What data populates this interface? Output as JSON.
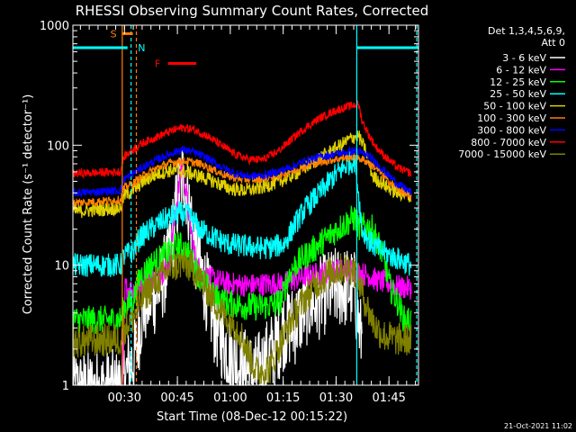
{
  "chart_data": {
    "type": "line",
    "title": "RHESSI Observing Summary Count Rates, Corrected",
    "xlabel": "Start Time (08-Dec-12 00:15:22)",
    "ylabel": "Corrected Count Rate (s⁻¹ detector⁻¹)",
    "y_scale": "log",
    "ylim": [
      1,
      1000
    ],
    "y_ticks": [
      1,
      10,
      100,
      1000
    ],
    "y_tick_labels": [
      "1",
      "10",
      "100",
      "1000"
    ],
    "x_unit": "minutes since 00:15:22",
    "xlim": [
      0,
      98
    ],
    "x_ticks": [
      14.63,
      29.63,
      44.63,
      59.63,
      74.63,
      89.63
    ],
    "x_tick_labels": [
      "00:30",
      "00:45",
      "01:00",
      "01:15",
      "01:30",
      "01:45"
    ],
    "grid": false,
    "legend_placement": "right",
    "legend_header": [
      "Det 1,3,4,5,6,9,",
      "Att 0"
    ],
    "footer": "21-Oct-2021 11:02",
    "vertical_markers": [
      {
        "x": 14.0,
        "color": "#ff8000",
        "style": "solid"
      },
      {
        "x": 16.5,
        "color": "#00ffff",
        "style": "dashed"
      },
      {
        "x": 18.0,
        "color": "#ff8000",
        "style": "dashed"
      },
      {
        "x": 80.5,
        "color": "#00ffff",
        "style": "solid"
      },
      {
        "x": 97.5,
        "color": "#00ffff",
        "style": "dashed"
      }
    ],
    "flag_bars": [
      {
        "label": "N",
        "color": "#00ffff",
        "segments": [
          [
            0,
            15.5
          ],
          [
            80.5,
            98
          ]
        ],
        "level": 650,
        "label_x": 19.5
      },
      {
        "label": "S",
        "color": "#ff8000",
        "segments": [
          [
            14,
            17
          ]
        ],
        "level": 850,
        "label_x": 11.5
      },
      {
        "label": "F",
        "color": "#ff0000",
        "segments": [
          [
            27,
            35
          ]
        ],
        "level": 480,
        "label_x": 24
      }
    ],
    "series": [
      {
        "name": "3 - 6 keV",
        "color": "#ffffff",
        "points": [
          [
            0,
            0.9
          ],
          [
            13.5,
            0.9
          ],
          [
            15,
            1.2
          ],
          [
            17,
            1.6
          ],
          [
            18,
            2
          ],
          [
            19.5,
            4
          ],
          [
            21,
            5
          ],
          [
            24,
            6
          ],
          [
            27,
            10
          ],
          [
            30,
            40
          ],
          [
            31.5,
            60
          ],
          [
            33,
            30
          ],
          [
            35,
            12
          ],
          [
            38,
            6
          ],
          [
            40,
            3.3
          ],
          [
            43,
            2.2
          ],
          [
            47,
            1.5
          ],
          [
            52,
            1.2
          ],
          [
            56,
            1.8
          ],
          [
            60,
            3
          ],
          [
            63,
            3.2
          ],
          [
            66,
            4.6
          ],
          [
            69,
            5
          ],
          [
            72,
            6
          ],
          [
            75,
            6.5
          ],
          [
            78,
            6.5
          ],
          [
            80,
            6
          ],
          [
            81.5,
            2.5
          ],
          [
            82,
            2.8
          ]
        ],
        "noise": 0.35
      },
      {
        "name": "6 - 12 keV",
        "color": "#ff00ff",
        "points": [
          [
            13.5,
            0.5
          ],
          [
            14.3,
            1.5
          ],
          [
            14.8,
            6.5
          ],
          [
            17,
            6.2
          ],
          [
            20,
            7
          ],
          [
            24,
            8
          ],
          [
            27,
            10
          ],
          [
            29,
            25
          ],
          [
            31,
            75
          ],
          [
            33,
            25
          ],
          [
            35,
            10
          ],
          [
            38,
            8
          ],
          [
            44,
            7
          ],
          [
            50,
            6.8
          ],
          [
            56,
            7
          ],
          [
            60,
            7
          ],
          [
            65,
            8
          ],
          [
            70,
            8.5
          ],
          [
            75,
            9
          ],
          [
            79,
            9.2
          ],
          [
            82,
            8.5
          ],
          [
            84,
            8.2
          ],
          [
            86,
            7.5
          ],
          [
            90,
            7
          ],
          [
            93,
            6.5
          ],
          [
            96,
            6.5
          ]
        ],
        "noise": 0.1
      },
      {
        "name": "12 - 25 keV",
        "color": "#00ff00",
        "points": [
          [
            0,
            3.5
          ],
          [
            13.5,
            3.5
          ],
          [
            14.5,
            4.5
          ],
          [
            17,
            5
          ],
          [
            19,
            8
          ],
          [
            22,
            10
          ],
          [
            26,
            12
          ],
          [
            30,
            15
          ],
          [
            33,
            12
          ],
          [
            36,
            8
          ],
          [
            40,
            5.5
          ],
          [
            44,
            4.8
          ],
          [
            48,
            4.6
          ],
          [
            52,
            4.5
          ],
          [
            56,
            4.6
          ],
          [
            59,
            5
          ],
          [
            61,
            8
          ],
          [
            63,
            10
          ],
          [
            66,
            12
          ],
          [
            70,
            15
          ],
          [
            74,
            19
          ],
          [
            78,
            23
          ],
          [
            80,
            25
          ],
          [
            81,
            21
          ],
          [
            83,
            21
          ],
          [
            85,
            20
          ],
          [
            88,
            12
          ],
          [
            90,
            6.5
          ],
          [
            92,
            5
          ],
          [
            94,
            3.5
          ],
          [
            96,
            3.5
          ]
        ],
        "noise": 0.12
      },
      {
        "name": "25 - 50 keV",
        "color": "#00ffff",
        "points": [
          [
            0,
            10
          ],
          [
            13.5,
            10
          ],
          [
            14.5,
            12
          ],
          [
            17,
            13
          ],
          [
            19,
            17
          ],
          [
            22,
            20
          ],
          [
            26,
            24
          ],
          [
            30,
            27
          ],
          [
            33,
            26
          ],
          [
            36,
            20
          ],
          [
            40,
            17
          ],
          [
            44,
            15
          ],
          [
            48,
            14.5
          ],
          [
            52,
            14
          ],
          [
            56,
            14
          ],
          [
            60,
            15
          ],
          [
            63,
            22
          ],
          [
            66,
            30
          ],
          [
            70,
            40
          ],
          [
            74,
            55
          ],
          [
            78,
            70
          ],
          [
            80,
            75
          ],
          [
            82,
            20
          ],
          [
            84,
            16
          ],
          [
            86,
            14
          ],
          [
            88,
            13
          ],
          [
            90,
            12
          ],
          [
            93,
            11
          ],
          [
            96,
            10
          ]
        ],
        "noise": 0.1
      },
      {
        "name": "50 - 100 keV",
        "color": "#e0d000",
        "points": [
          [
            0,
            28
          ],
          [
            13.5,
            30
          ],
          [
            14.5,
            38
          ],
          [
            17,
            42
          ],
          [
            20,
            50
          ],
          [
            24,
            58
          ],
          [
            28,
            62
          ],
          [
            32,
            60
          ],
          [
            36,
            55
          ],
          [
            40,
            50
          ],
          [
            44,
            44
          ],
          [
            48,
            42
          ],
          [
            52,
            43
          ],
          [
            56,
            47
          ],
          [
            60,
            52
          ],
          [
            64,
            60
          ],
          [
            68,
            72
          ],
          [
            72,
            85
          ],
          [
            76,
            100
          ],
          [
            79,
            115
          ],
          [
            81,
            120
          ],
          [
            83,
            90
          ],
          [
            85,
            55
          ],
          [
            87,
            50
          ],
          [
            89,
            45
          ],
          [
            92,
            40
          ],
          [
            96,
            38
          ]
        ],
        "noise": 0.06
      },
      {
        "name": "100 - 300 keV",
        "color": "#ff8000",
        "points": [
          [
            0,
            33
          ],
          [
            13.5,
            35
          ],
          [
            14.5,
            44
          ],
          [
            17,
            48
          ],
          [
            20,
            56
          ],
          [
            24,
            65
          ],
          [
            28,
            72
          ],
          [
            32,
            74
          ],
          [
            36,
            70
          ],
          [
            40,
            62
          ],
          [
            44,
            55
          ],
          [
            48,
            52
          ],
          [
            52,
            52
          ],
          [
            56,
            54
          ],
          [
            60,
            58
          ],
          [
            64,
            64
          ],
          [
            68,
            70
          ],
          [
            72,
            74
          ],
          [
            76,
            78
          ],
          [
            80,
            80
          ],
          [
            83,
            74
          ],
          [
            86,
            64
          ],
          [
            89,
            52
          ],
          [
            92,
            44
          ],
          [
            96,
            36
          ]
        ],
        "noise": 0.035
      },
      {
        "name": "300 - 800 keV",
        "color": "#0000ff",
        "points": [
          [
            0,
            40
          ],
          [
            13.5,
            42
          ],
          [
            14.5,
            52
          ],
          [
            17,
            58
          ],
          [
            20,
            66
          ],
          [
            24,
            76
          ],
          [
            28,
            86
          ],
          [
            31,
            92
          ],
          [
            34,
            88
          ],
          [
            38,
            78
          ],
          [
            42,
            66
          ],
          [
            46,
            58
          ],
          [
            50,
            55
          ],
          [
            54,
            56
          ],
          [
            58,
            60
          ],
          [
            62,
            66
          ],
          [
            66,
            74
          ],
          [
            70,
            80
          ],
          [
            74,
            84
          ],
          [
            78,
            88
          ],
          [
            80,
            90
          ],
          [
            83,
            84
          ],
          [
            86,
            72
          ],
          [
            89,
            58
          ],
          [
            92,
            48
          ],
          [
            96,
            40
          ]
        ],
        "noise": 0.035
      },
      {
        "name": "800 - 7000 keV",
        "color": "#ff0000",
        "points": [
          [
            0,
            58
          ],
          [
            13.5,
            60
          ],
          [
            14.5,
            80
          ],
          [
            17,
            92
          ],
          [
            20,
            105
          ],
          [
            24,
            118
          ],
          [
            28,
            132
          ],
          [
            31,
            140
          ],
          [
            34,
            136
          ],
          [
            38,
            120
          ],
          [
            42,
            100
          ],
          [
            46,
            84
          ],
          [
            50,
            76
          ],
          [
            54,
            76
          ],
          [
            58,
            88
          ],
          [
            62,
            112
          ],
          [
            66,
            140
          ],
          [
            70,
            168
          ],
          [
            74,
            192
          ],
          [
            78,
            210
          ],
          [
            81,
            220
          ],
          [
            82,
            160
          ],
          [
            84,
            120
          ],
          [
            86,
            96
          ],
          [
            89,
            78
          ],
          [
            92,
            65
          ],
          [
            96,
            58
          ]
        ],
        "noise": 0.035
      },
      {
        "name": "7000 - 15000 keV",
        "color": "#808000",
        "points": [
          [
            0,
            2.3
          ],
          [
            13.5,
            2.4
          ],
          [
            14.5,
            3
          ],
          [
            17,
            3.6
          ],
          [
            20,
            5.5
          ],
          [
            24,
            7.5
          ],
          [
            28,
            9.5
          ],
          [
            31,
            10.5
          ],
          [
            34,
            9.5
          ],
          [
            37,
            7
          ],
          [
            40,
            5
          ],
          [
            43,
            3.8
          ],
          [
            46,
            3.2
          ],
          [
            48,
            2.5
          ],
          [
            52,
            1.3
          ],
          [
            56,
            1.4
          ],
          [
            59,
            2.3
          ],
          [
            62,
            3.5
          ],
          [
            66,
            5.5
          ],
          [
            70,
            7.5
          ],
          [
            74,
            9
          ],
          [
            78,
            9.5
          ],
          [
            80,
            9
          ],
          [
            82,
            6
          ],
          [
            84,
            4
          ],
          [
            86,
            3
          ],
          [
            88,
            2.6
          ],
          [
            92,
            2.4
          ],
          [
            96,
            2.4
          ]
        ],
        "noise": 0.14
      }
    ]
  }
}
